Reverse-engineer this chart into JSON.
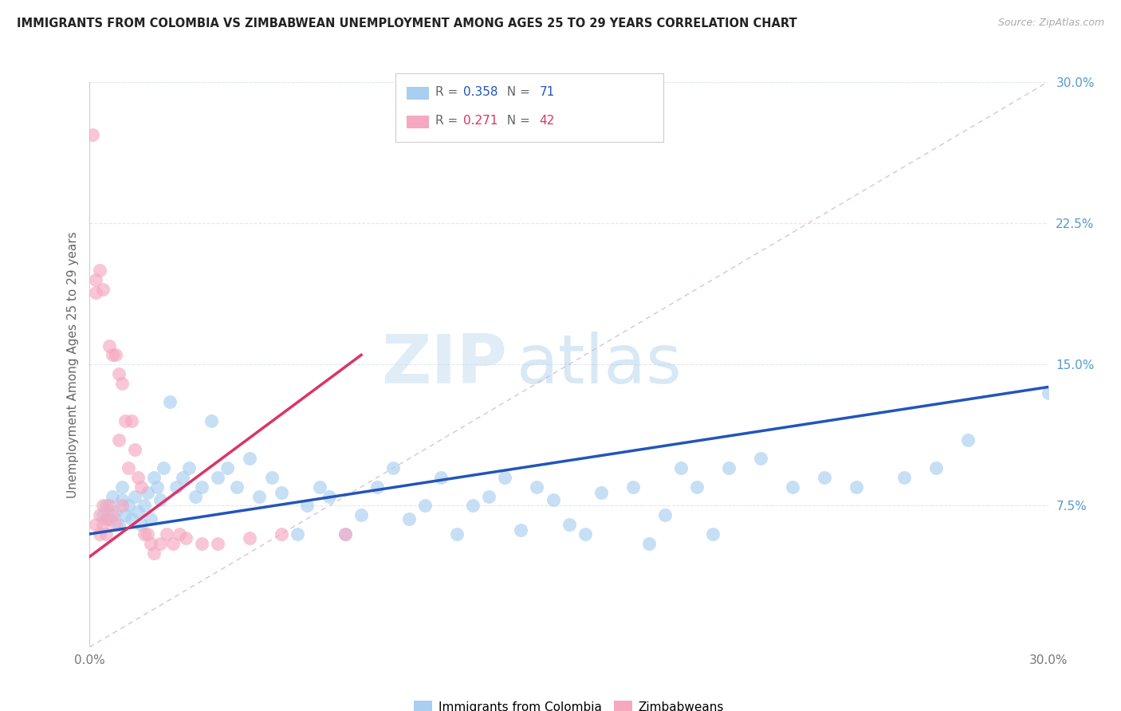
{
  "title": "IMMIGRANTS FROM COLOMBIA VS ZIMBABWEAN UNEMPLOYMENT AMONG AGES 25 TO 29 YEARS CORRELATION CHART",
  "source_text": "Source: ZipAtlas.com",
  "ylabel": "Unemployment Among Ages 25 to 29 years",
  "xlim": [
    0.0,
    0.3
  ],
  "ylim": [
    0.0,
    0.3
  ],
  "xticks": [
    0.0,
    0.075,
    0.15,
    0.225,
    0.3
  ],
  "xticklabels": [
    "0.0%",
    "",
    "",
    "",
    "30.0%"
  ],
  "yticks_right": [
    0.075,
    0.15,
    0.225,
    0.3
  ],
  "yticklabels_right": [
    "7.5%",
    "15.0%",
    "22.5%",
    "30.0%"
  ],
  "blue_scatter_color": "#a8cef0",
  "pink_scatter_color": "#f5a8c0",
  "blue_line_color": "#2255bb",
  "pink_line_color": "#dd3366",
  "ref_line_color": "#d8d8d8",
  "blue_R": "0.358",
  "blue_N": "71",
  "pink_R": "0.271",
  "pink_N": "42",
  "legend_label_blue": "Immigrants from Colombia",
  "legend_label_pink": "Zimbabweans",
  "watermark_zip": "ZIP",
  "watermark_atlas": "atlas",
  "bg_color": "#ffffff",
  "grid_color": "#e0e8f0",
  "blue_scatter_x": [
    0.004,
    0.005,
    0.006,
    0.007,
    0.008,
    0.009,
    0.01,
    0.01,
    0.011,
    0.012,
    0.013,
    0.014,
    0.015,
    0.016,
    0.017,
    0.018,
    0.019,
    0.02,
    0.021,
    0.022,
    0.023,
    0.025,
    0.027,
    0.029,
    0.031,
    0.033,
    0.035,
    0.038,
    0.04,
    0.043,
    0.046,
    0.05,
    0.053,
    0.057,
    0.06,
    0.065,
    0.068,
    0.072,
    0.075,
    0.08,
    0.085,
    0.09,
    0.095,
    0.1,
    0.105,
    0.11,
    0.115,
    0.12,
    0.125,
    0.13,
    0.135,
    0.14,
    0.145,
    0.15,
    0.155,
    0.16,
    0.17,
    0.175,
    0.18,
    0.185,
    0.19,
    0.195,
    0.2,
    0.21,
    0.22,
    0.23,
    0.24,
    0.255,
    0.265,
    0.275,
    0.3
  ],
  "blue_scatter_y": [
    0.07,
    0.075,
    0.068,
    0.08,
    0.072,
    0.065,
    0.078,
    0.085,
    0.07,
    0.075,
    0.068,
    0.08,
    0.072,
    0.065,
    0.075,
    0.082,
    0.068,
    0.09,
    0.085,
    0.078,
    0.095,
    0.13,
    0.085,
    0.09,
    0.095,
    0.08,
    0.085,
    0.12,
    0.09,
    0.095,
    0.085,
    0.1,
    0.08,
    0.09,
    0.082,
    0.06,
    0.075,
    0.085,
    0.08,
    0.06,
    0.07,
    0.085,
    0.095,
    0.068,
    0.075,
    0.09,
    0.06,
    0.075,
    0.08,
    0.09,
    0.062,
    0.085,
    0.078,
    0.065,
    0.06,
    0.082,
    0.085,
    0.055,
    0.07,
    0.095,
    0.085,
    0.06,
    0.095,
    0.1,
    0.085,
    0.09,
    0.085,
    0.09,
    0.095,
    0.11,
    0.135
  ],
  "pink_scatter_x": [
    0.001,
    0.002,
    0.002,
    0.002,
    0.003,
    0.003,
    0.003,
    0.004,
    0.004,
    0.004,
    0.005,
    0.005,
    0.006,
    0.006,
    0.007,
    0.007,
    0.008,
    0.008,
    0.009,
    0.009,
    0.01,
    0.01,
    0.011,
    0.012,
    0.013,
    0.014,
    0.015,
    0.016,
    0.017,
    0.018,
    0.019,
    0.02,
    0.022,
    0.024,
    0.026,
    0.028,
    0.03,
    0.035,
    0.04,
    0.05,
    0.06,
    0.08
  ],
  "pink_scatter_y": [
    0.272,
    0.195,
    0.188,
    0.065,
    0.2,
    0.07,
    0.06,
    0.19,
    0.075,
    0.065,
    0.068,
    0.06,
    0.075,
    0.16,
    0.155,
    0.07,
    0.155,
    0.065,
    0.145,
    0.11,
    0.14,
    0.075,
    0.12,
    0.095,
    0.12,
    0.105,
    0.09,
    0.085,
    0.06,
    0.06,
    0.055,
    0.05,
    0.055,
    0.06,
    0.055,
    0.06,
    0.058,
    0.055,
    0.055,
    0.058,
    0.06,
    0.06
  ],
  "blue_trend_x": [
    0.0,
    0.3
  ],
  "blue_trend_y": [
    0.06,
    0.138
  ],
  "pink_trend_x": [
    0.0,
    0.085
  ],
  "pink_trend_y": [
    0.048,
    0.155
  ]
}
